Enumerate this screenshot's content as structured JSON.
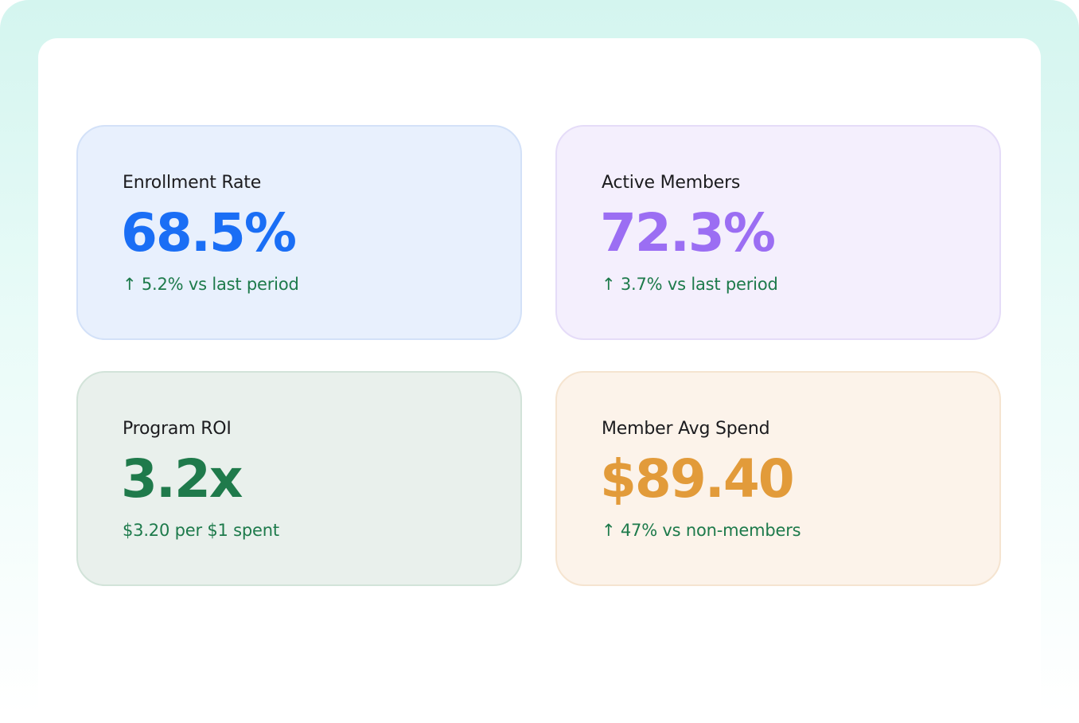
{
  "colors": {
    "enrollment_accent": "#1a6ef5",
    "members_accent": "#9b6ef3",
    "roi_accent": "#1f7a4b",
    "spend_accent": "#e29b3a",
    "positive_text": "#1d7a4b"
  },
  "cards": [
    {
      "label": "Enrollment Rate",
      "value": "68.5%",
      "delta": "↑ 5.2% vs last period"
    },
    {
      "label": "Active Members",
      "value": "72.3%",
      "delta": "↑ 3.7% vs last period"
    },
    {
      "label": "Program ROI",
      "value": "3.2x",
      "delta": "$3.20 per $1 spent"
    },
    {
      "label": "Member Avg Spend",
      "value": "$89.40",
      "delta": "↑ 47% vs non-members"
    }
  ]
}
